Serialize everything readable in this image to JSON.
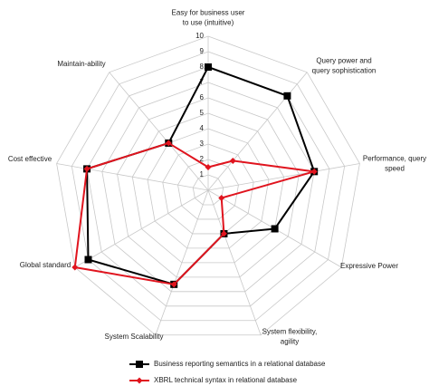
{
  "chart_data": {
    "type": "radar",
    "categories": [
      "Easy for business user\nto use (intuitive)",
      "Query power and\nquery sophistication",
      "Performance, query\nspeed",
      "Expressive Power",
      "System flexibility,\nagility",
      "System Scalability",
      "Global standard",
      "Cost effective",
      "Maintain-ability"
    ],
    "series": [
      {
        "name": "Business reporting semantics in a relational database",
        "color": "#000000",
        "marker": "square",
        "values": [
          8,
          8,
          7,
          5,
          3,
          6.5,
          9,
          8,
          4
        ]
      },
      {
        "name": "XBRL technical syntax in relational database",
        "color": "#e0141e",
        "marker": "diamond",
        "values": [
          1.5,
          2.5,
          7,
          1,
          3,
          6.5,
          10,
          8,
          4
        ]
      }
    ],
    "rlim": [
      0,
      10
    ],
    "rticks": [
      1,
      2,
      3,
      4,
      5,
      6,
      7,
      8,
      9,
      10
    ],
    "grid": true,
    "legend": "bottom"
  }
}
